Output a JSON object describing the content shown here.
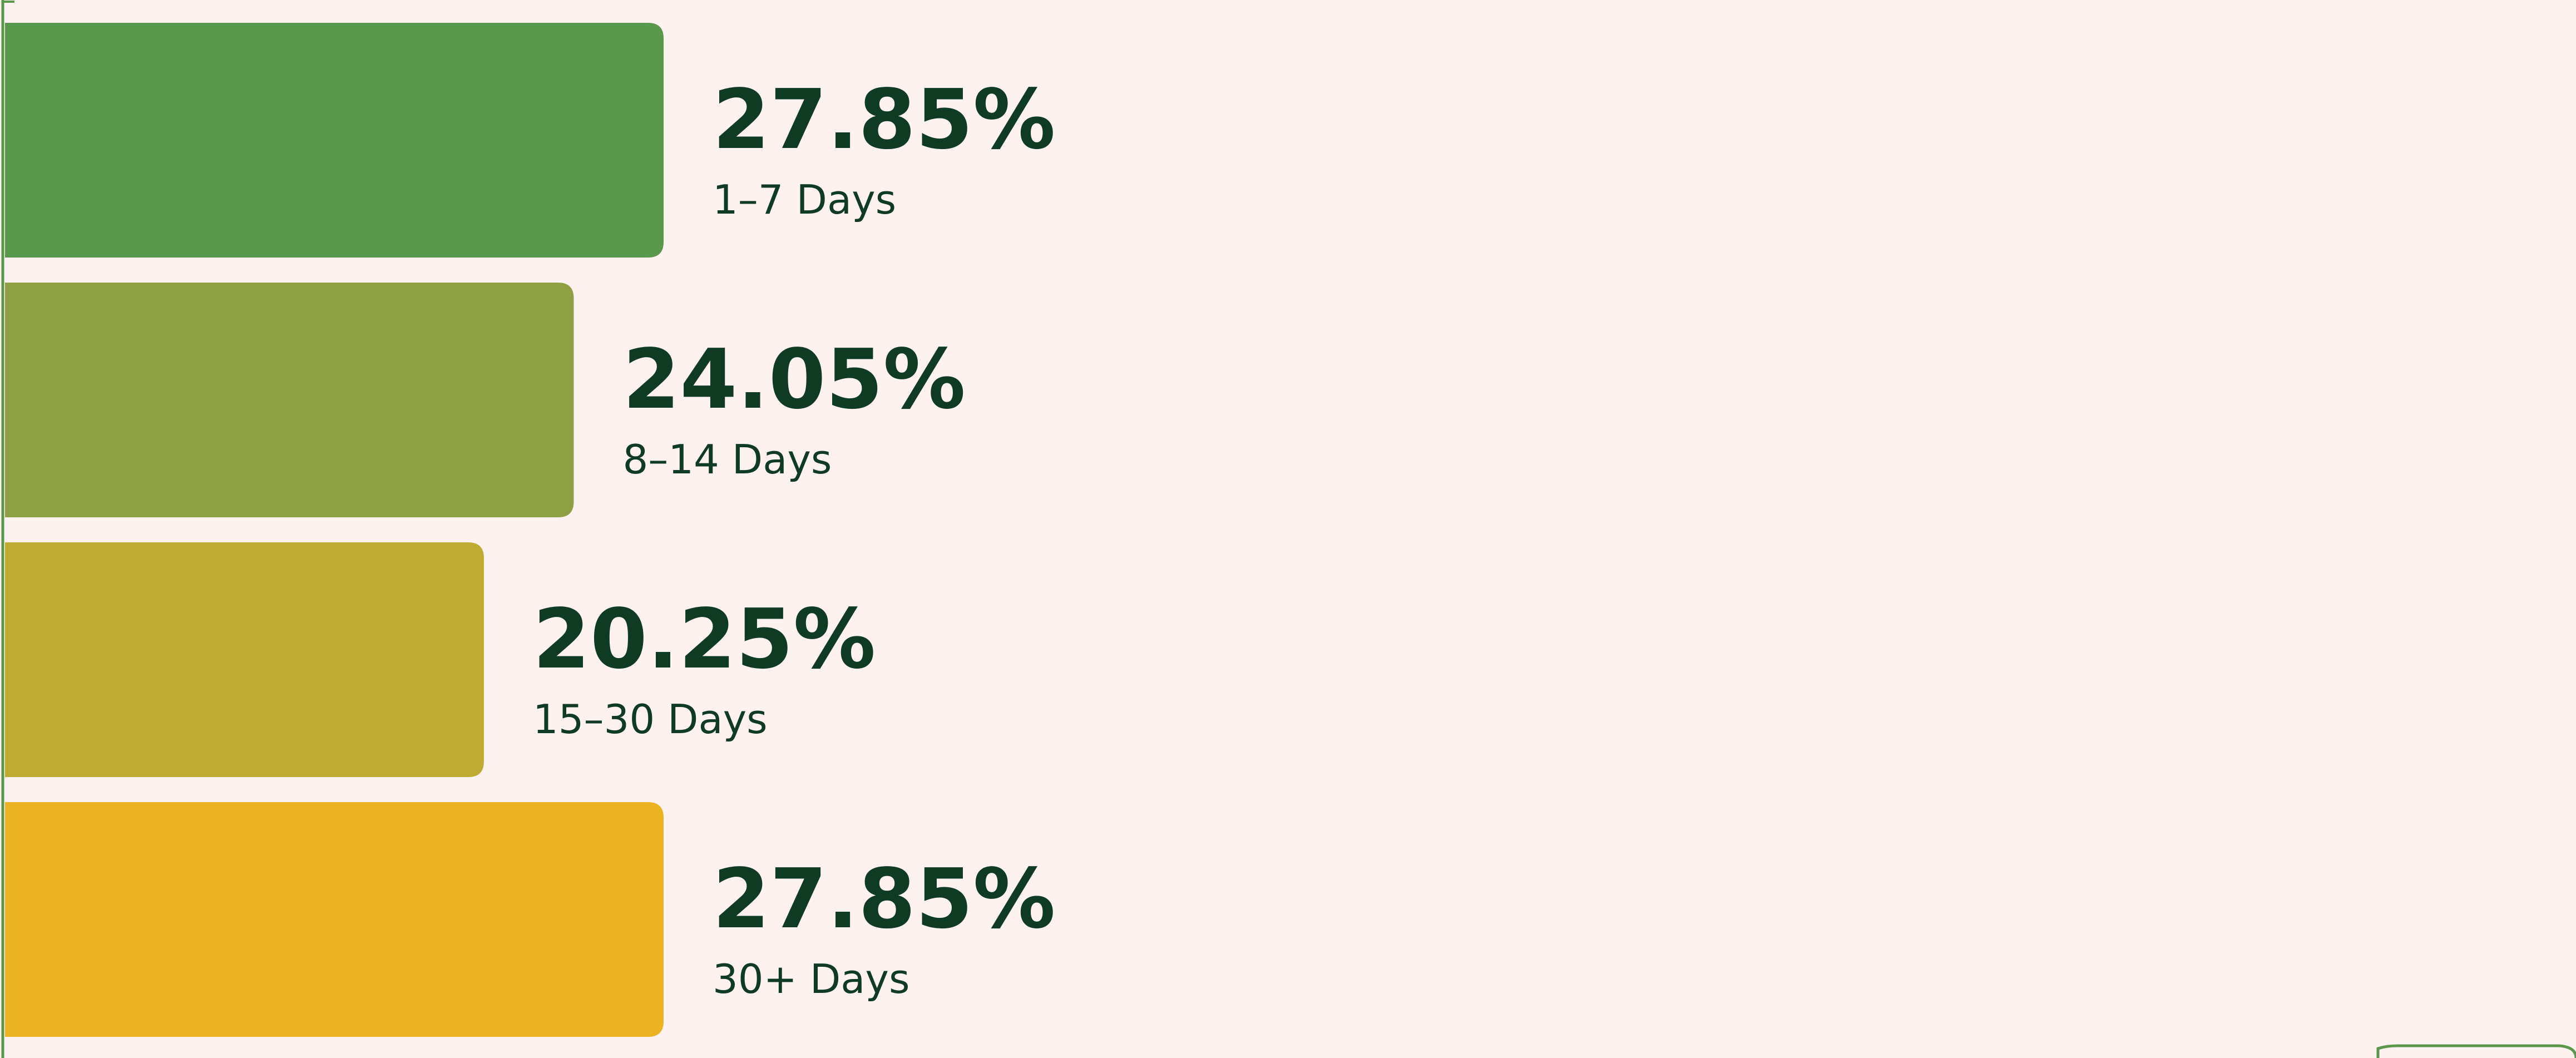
{
  "chart_data": {
    "type": "bar",
    "orientation": "horizontal",
    "categories": [
      "1–7 Days",
      "8–14 Days",
      "15–30 Days",
      "30+ Days"
    ],
    "values": [
      27.85,
      24.05,
      20.25,
      27.85
    ],
    "value_labels": [
      "27.85%",
      "24.05%",
      "20.25%",
      "27.85%"
    ],
    "colors": [
      "#5a984b",
      "#8ea043",
      "#bfaa33",
      "#ebb321"
    ]
  }
}
